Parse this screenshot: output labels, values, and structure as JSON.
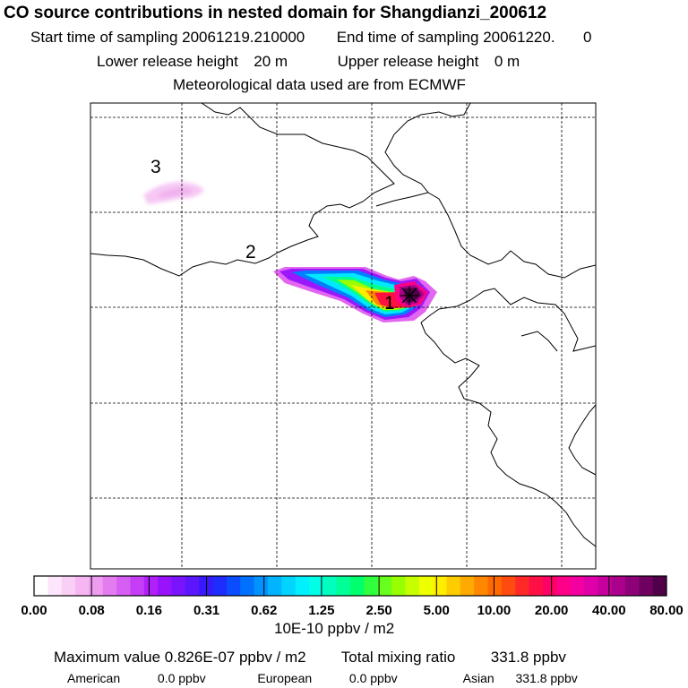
{
  "header": {
    "title": "CO  source contributions in nested domain for Shangdianzi_200612",
    "start_label": "Start time of sampling",
    "start_value": "20061219.210000",
    "end_label": "End time of sampling",
    "end_value": "20061220.",
    "end_value2": "0",
    "lower_label": "Lower release height",
    "lower_value": "20 m",
    "upper_label": "Upper release height",
    "upper_value": "0 m",
    "met_line": "Meteorological data used are from ECMWF"
  },
  "map": {
    "region_labels": [
      "1",
      "2",
      "3"
    ],
    "receptor_marker": "+"
  },
  "colorbar": {
    "unit": "10E-10 ppbv / m2",
    "tick_labels": [
      "0.00",
      "0.08",
      "0.16",
      "0.31",
      "0.62",
      "1.25",
      "2.50",
      "5.00",
      "10.00",
      "20.00",
      "40.00",
      "80.00"
    ],
    "colors": [
      "#ffffff",
      "#fde6fb",
      "#f9cff6",
      "#f5b6f2",
      "#ee9cef",
      "#e47cf0",
      "#d75ef3",
      "#c53ef6",
      "#b020f9",
      "#9812fb",
      "#7a14fc",
      "#5b16fd",
      "#3a18fc",
      "#1e2cfd",
      "#0a4cfe",
      "#0070ff",
      "#0092ff",
      "#00b4ff",
      "#00d4ff",
      "#00f0ff",
      "#00ffe6",
      "#00ffbe",
      "#00ff96",
      "#00ff6c",
      "#30ff40",
      "#66ff1e",
      "#99ff00",
      "#c6ff00",
      "#eeff00",
      "#ffee00",
      "#ffcc00",
      "#ffaa00",
      "#ff8800",
      "#ff6a00",
      "#ff4a10",
      "#ff2a28",
      "#ff0f44",
      "#ff0066",
      "#ff0088",
      "#f400a0",
      "#e000aa",
      "#c6009c",
      "#aa008c",
      "#8e0078",
      "#700060",
      "#500048"
    ]
  },
  "summary": {
    "max_label": "Maximum value",
    "max_value": "0.826E-07 ppbv / m2",
    "total_label": "Total mixing ratio",
    "total_value": "331.8 ppbv",
    "american_label": "American",
    "american_value": "0.0 ppbv",
    "european_label": "European",
    "european_value": "0.0 ppbv",
    "asian_label": "Asian",
    "asian_value": "331.8 ppbv"
  },
  "chart_data": {
    "type": "heatmap",
    "title": "CO  source contributions in nested domain for Shangdianzi_200612",
    "colorbar_unit": "10E-10 ppbv / m2",
    "levels": [
      0.0,
      0.08,
      0.16,
      0.31,
      0.62,
      1.25,
      2.5,
      5.0,
      10.0,
      20.0,
      40.0,
      80.0
    ],
    "grid": true,
    "maximum_value": "0.826E-07 ppbv / m2",
    "total_mixing_ratio": "331.8 ppbv",
    "contributions": {
      "American": "0.0 ppbv",
      "European": "0.0 ppbv",
      "Asian": "331.8 ppbv"
    }
  }
}
